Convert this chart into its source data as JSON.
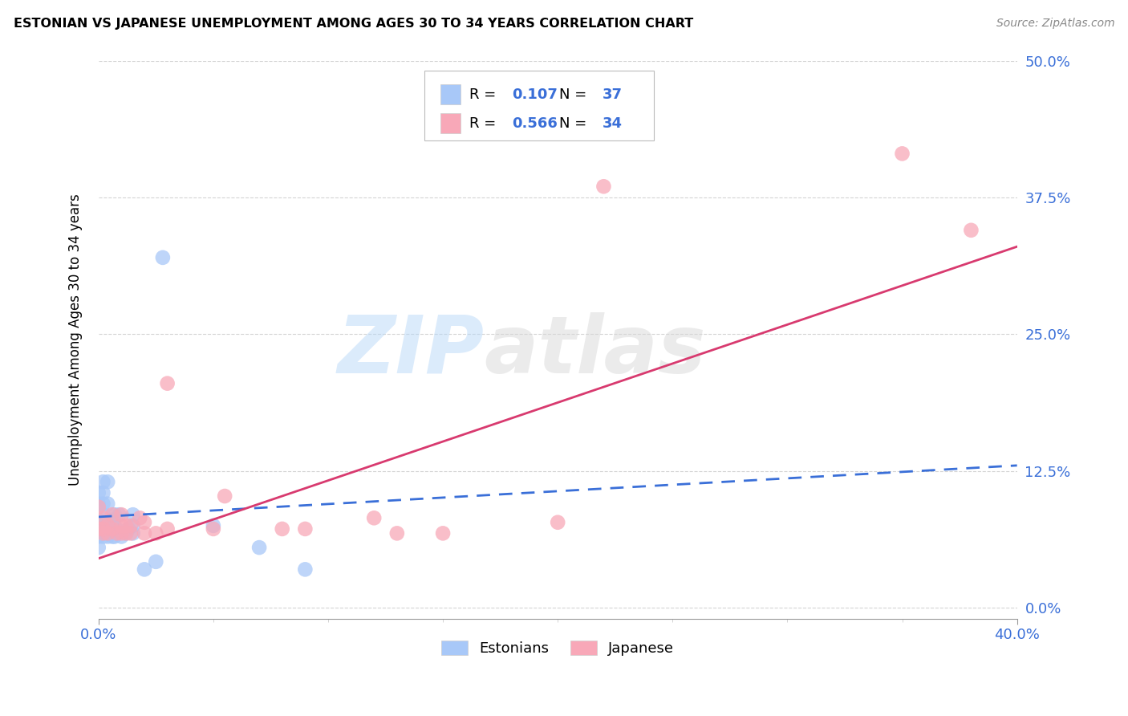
{
  "title": "ESTONIAN VS JAPANESE UNEMPLOYMENT AMONG AGES 30 TO 34 YEARS CORRELATION CHART",
  "source": "Source: ZipAtlas.com",
  "ylabel": "Unemployment Among Ages 30 to 34 years",
  "xlim": [
    0.0,
    0.4
  ],
  "ylim": [
    -0.01,
    0.5
  ],
  "ytick_labels": [
    "0.0%",
    "12.5%",
    "25.0%",
    "37.5%",
    "50.0%"
  ],
  "ytick_values": [
    0.0,
    0.125,
    0.25,
    0.375,
    0.5
  ],
  "xtick_values": [
    0.0,
    0.05,
    0.1,
    0.15,
    0.2,
    0.25,
    0.3,
    0.35,
    0.4
  ],
  "legend_R_estonian": "0.107",
  "legend_N_estonian": "37",
  "legend_R_japanese": "0.566",
  "legend_N_japanese": "34",
  "color_estonian": "#a8c8f8",
  "color_japanese": "#f8a8b8",
  "line_color_estonian": "#3a6fd8",
  "line_color_japanese": "#d83a6f",
  "tick_color": "#3a6fd8",
  "background_color": "#ffffff",
  "grid_color": "#d0d0d0",
  "watermark_zip": "ZIP",
  "watermark_atlas": "atlas",
  "estonian_x": [
    0.0,
    0.0,
    0.0,
    0.0,
    0.0,
    0.0,
    0.0,
    0.002,
    0.002,
    0.002,
    0.002,
    0.002,
    0.002,
    0.004,
    0.004,
    0.004,
    0.004,
    0.006,
    0.006,
    0.006,
    0.007,
    0.007,
    0.007,
    0.009,
    0.009,
    0.01,
    0.012,
    0.013,
    0.015,
    0.015,
    0.015,
    0.02,
    0.025,
    0.028,
    0.05,
    0.07,
    0.09
  ],
  "estonian_y": [
    0.055,
    0.065,
    0.07,
    0.075,
    0.08,
    0.095,
    0.105,
    0.065,
    0.075,
    0.085,
    0.095,
    0.105,
    0.115,
    0.065,
    0.075,
    0.095,
    0.115,
    0.065,
    0.075,
    0.08,
    0.065,
    0.075,
    0.085,
    0.07,
    0.085,
    0.065,
    0.068,
    0.072,
    0.068,
    0.075,
    0.085,
    0.035,
    0.042,
    0.32,
    0.075,
    0.055,
    0.035
  ],
  "japanese_x": [
    0.0,
    0.0,
    0.002,
    0.002,
    0.002,
    0.004,
    0.004,
    0.006,
    0.006,
    0.008,
    0.01,
    0.01,
    0.01,
    0.012,
    0.012,
    0.014,
    0.014,
    0.018,
    0.02,
    0.02,
    0.025,
    0.03,
    0.03,
    0.05,
    0.055,
    0.08,
    0.09,
    0.12,
    0.13,
    0.15,
    0.2,
    0.22,
    0.35,
    0.38
  ],
  "japanese_y": [
    0.072,
    0.092,
    0.068,
    0.072,
    0.082,
    0.068,
    0.075,
    0.072,
    0.085,
    0.068,
    0.068,
    0.075,
    0.085,
    0.068,
    0.075,
    0.068,
    0.075,
    0.082,
    0.068,
    0.078,
    0.068,
    0.072,
    0.205,
    0.072,
    0.102,
    0.072,
    0.072,
    0.082,
    0.068,
    0.068,
    0.078,
    0.385,
    0.415,
    0.345
  ],
  "est_line_x0": 0.0,
  "est_line_y0": 0.083,
  "est_line_x1": 0.4,
  "est_line_y1": 0.13,
  "jap_line_x0": 0.0,
  "jap_line_y0": 0.045,
  "jap_line_x1": 0.4,
  "jap_line_y1": 0.33
}
